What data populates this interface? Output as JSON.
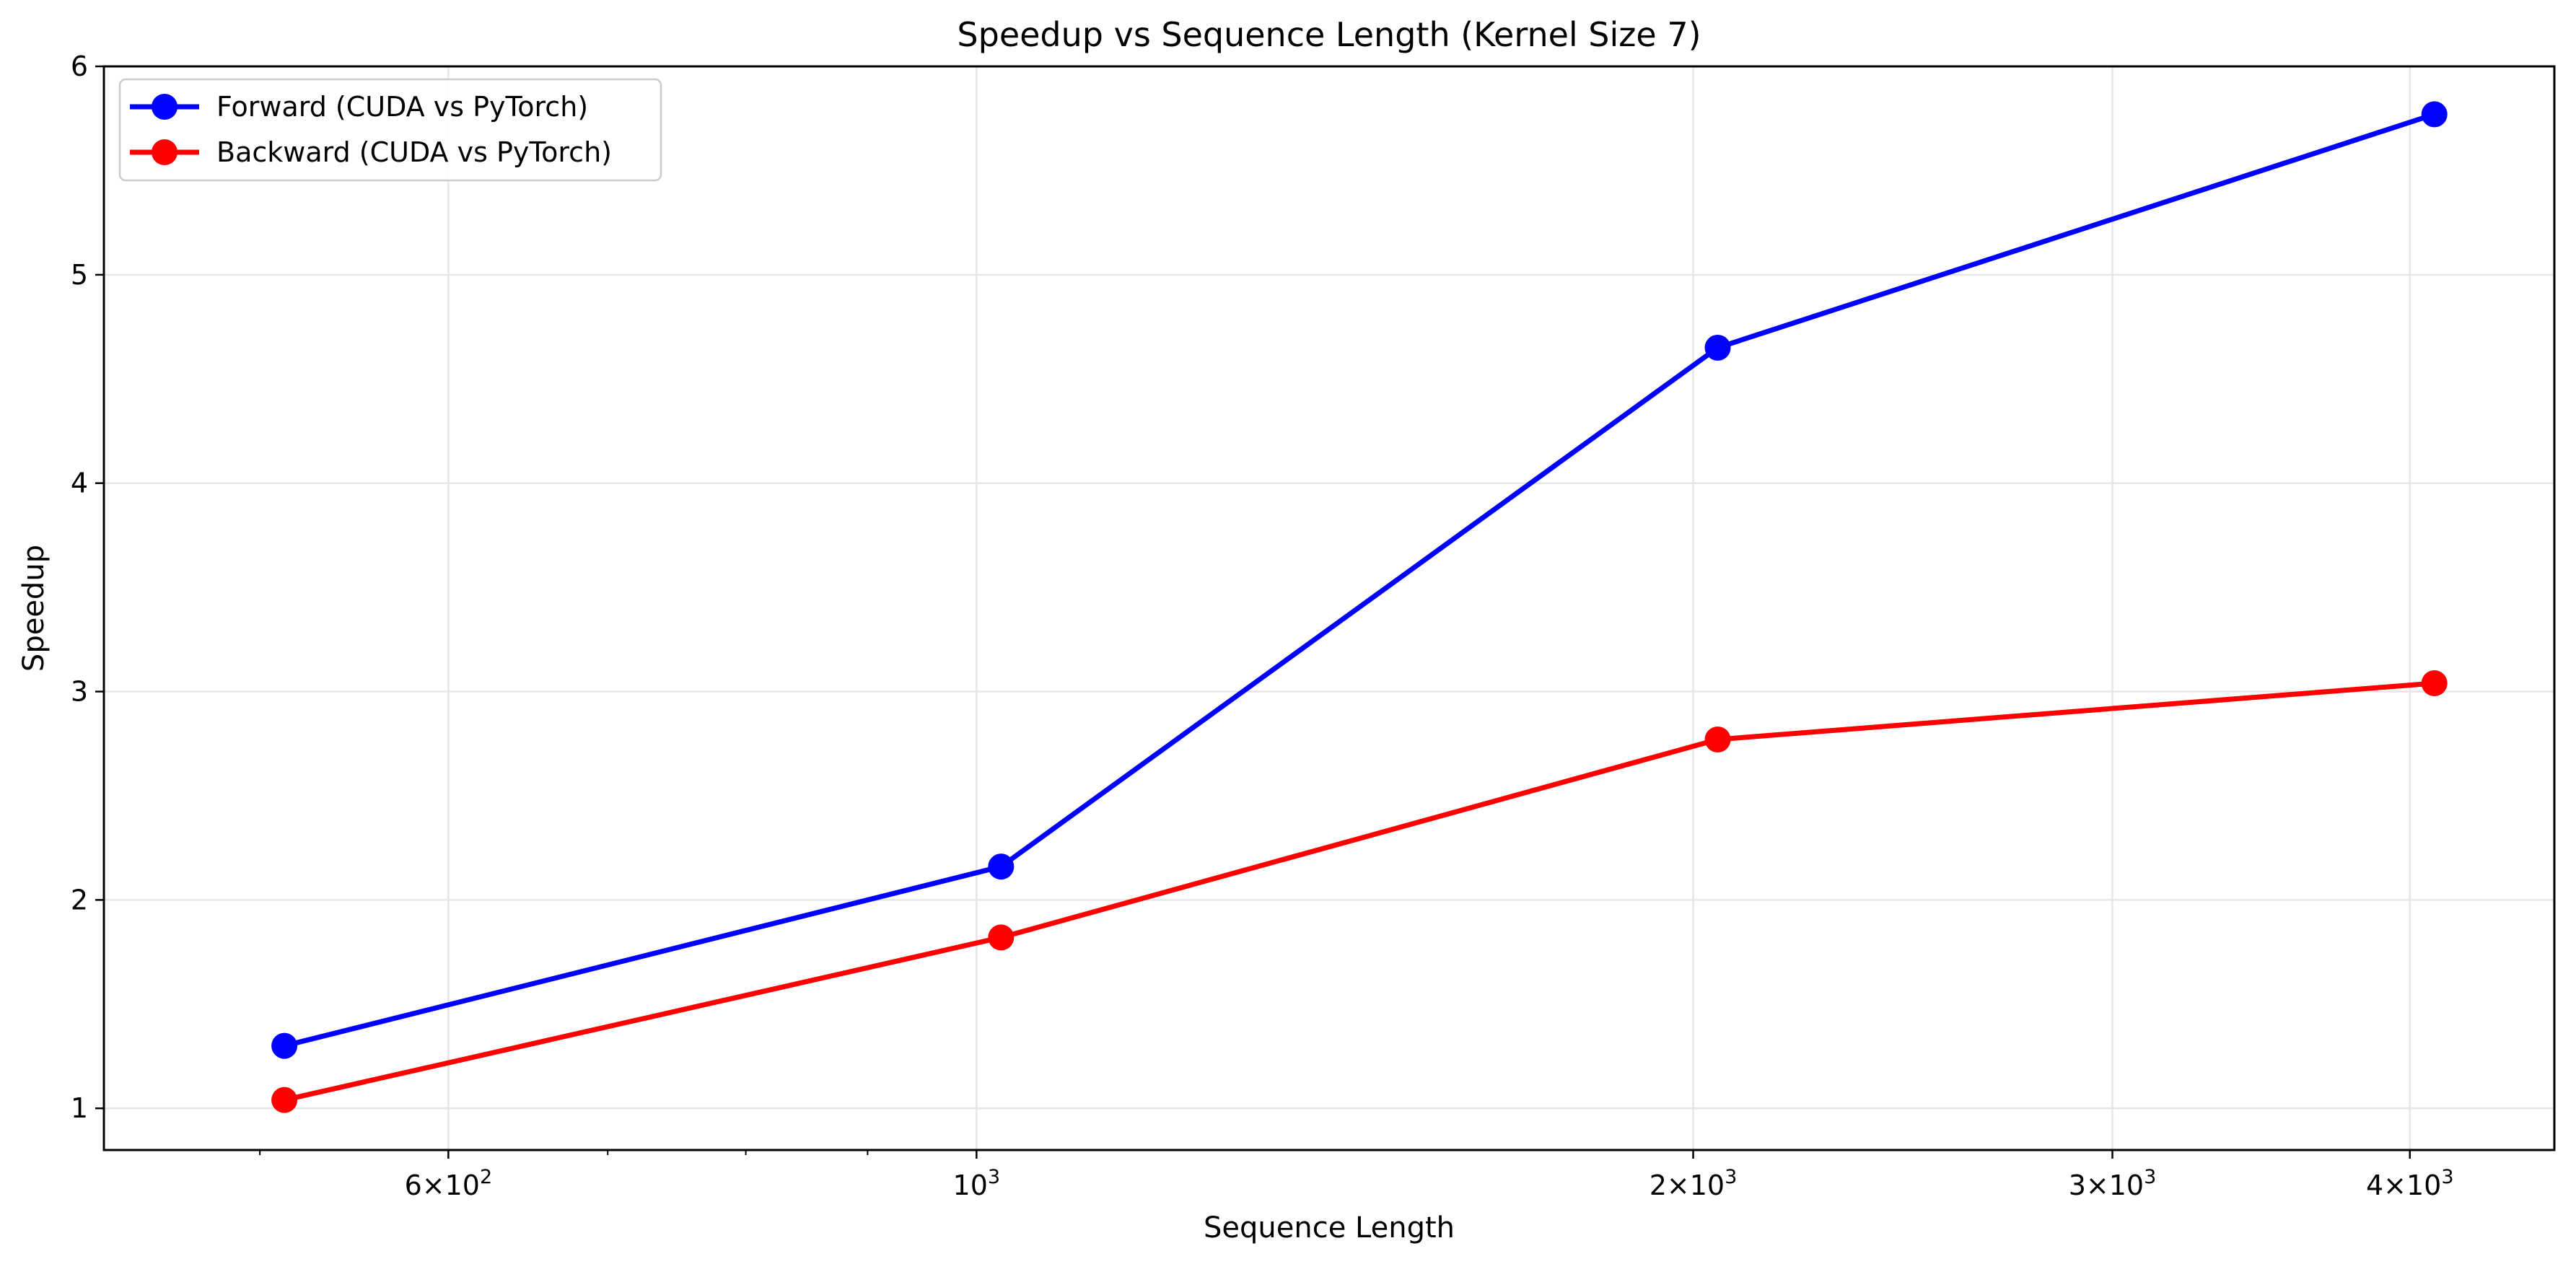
{
  "chart_data": {
    "type": "line",
    "title": "Speedup vs Sequence Length (Kernel Size 7)",
    "xlabel": "Sequence Length",
    "ylabel": "Speedup",
    "xscale": "log",
    "xlim": [
      430,
      4600
    ],
    "ylim": [
      0.8,
      6.0
    ],
    "x": [
      512,
      1024,
      2048,
      4096
    ],
    "grid": true,
    "legend_position": "top-left",
    "x_ticks": [
      {
        "value": 600,
        "label_base": "6×10",
        "label_exp": "2"
      },
      {
        "value": 1000,
        "label_base": "10",
        "label_exp": "3"
      },
      {
        "value": 2000,
        "label_base": "2×10",
        "label_exp": "3"
      },
      {
        "value": 3000,
        "label_base": "3×10",
        "label_exp": "3"
      },
      {
        "value": 4000,
        "label_base": "4×10",
        "label_exp": "3"
      }
    ],
    "x_minor_ticks": [
      500,
      700,
      800,
      900
    ],
    "y_ticks": [
      {
        "value": 1,
        "label": "1"
      },
      {
        "value": 2,
        "label": "2"
      },
      {
        "value": 3,
        "label": "3"
      },
      {
        "value": 4,
        "label": "4"
      },
      {
        "value": 5,
        "label": "5"
      },
      {
        "value": 6,
        "label": "6"
      }
    ],
    "series": [
      {
        "name": "Forward (CUDA vs PyTorch)",
        "color": "#0000ff",
        "values": [
          1.3,
          2.16,
          4.65,
          5.77
        ]
      },
      {
        "name": "Backward (CUDA vs PyTorch)",
        "color": "#ff0000",
        "values": [
          1.04,
          1.82,
          2.77,
          3.04
        ]
      }
    ]
  }
}
